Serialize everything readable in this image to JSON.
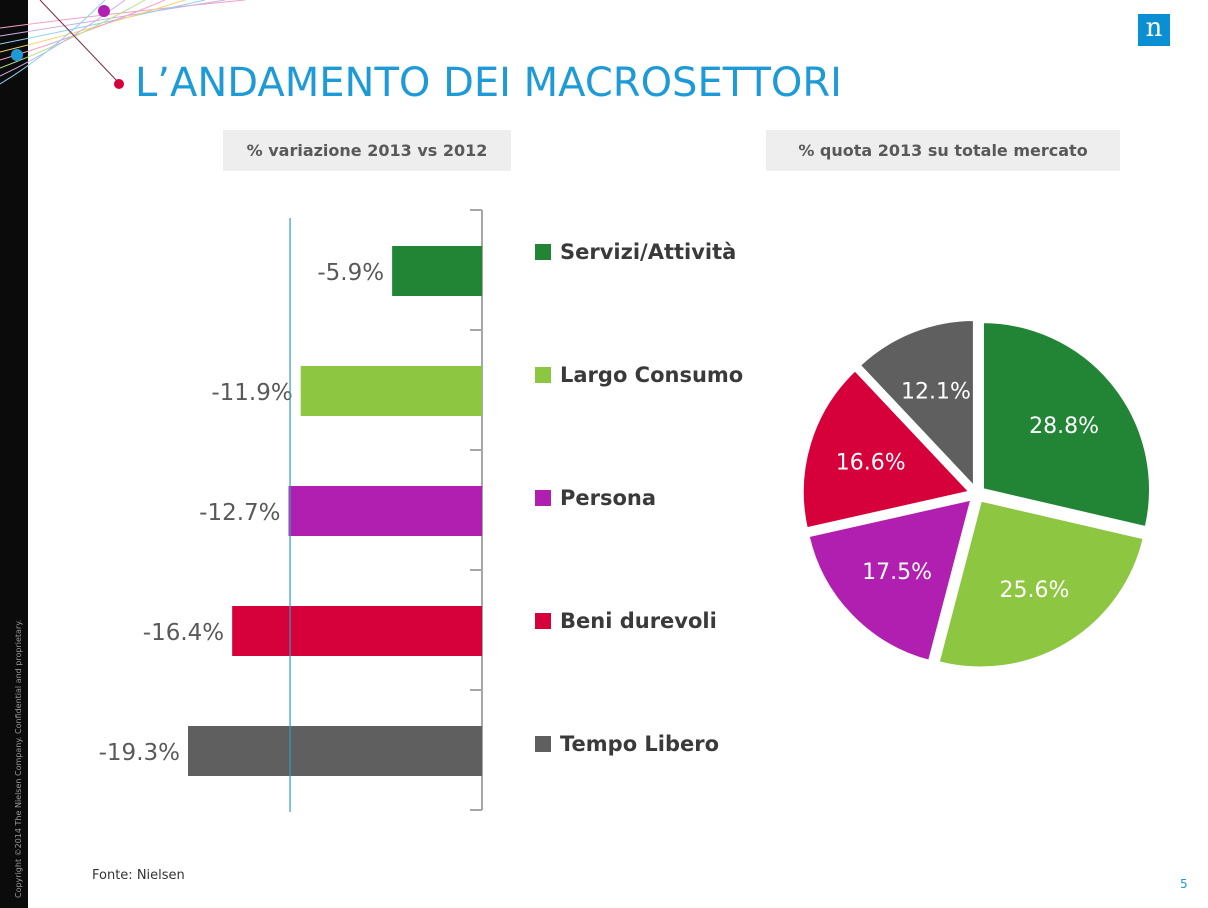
{
  "slide": {
    "title": "L’ANDAMENTO DEI MACROSETTORI",
    "copyright": "Copyright ©2014 The Nielsen Company. Confidential and proprietary.",
    "logo": "n",
    "source": "Fonte: Nielsen",
    "page_number": "5"
  },
  "legend": [
    {
      "label": "Servizi/Attività",
      "color": "#218535"
    },
    {
      "label": "Largo Consumo",
      "color": "#8dc641"
    },
    {
      "label": "Persona",
      "color": "#b01faf"
    },
    {
      "label": "Beni durevoli",
      "color": "#d6003a"
    },
    {
      "label": "Tempo Libero",
      "color": "#5f5f5f"
    }
  ],
  "chart_data": [
    {
      "type": "bar",
      "orientation": "horizontal",
      "title": "% variazione 2013 vs 2012",
      "categories": [
        "Servizi/Attività",
        "Largo Consumo",
        "Persona",
        "Beni durevoli",
        "Tempo Libero"
      ],
      "values": [
        -5.9,
        -11.9,
        -12.7,
        -16.4,
        -19.3
      ],
      "data_labels": [
        "-5.9%",
        "-11.9%",
        "-12.7%",
        "-16.4%",
        "-19.3%"
      ],
      "colors": [
        "#218535",
        "#8dc641",
        "#b01faf",
        "#d6003a",
        "#5f5f5f"
      ],
      "reference_value": -12.6,
      "xlim": [
        -19.3,
        0
      ],
      "grid": false
    },
    {
      "type": "pie",
      "title": "% quota 2013 su totale mercato",
      "categories": [
        "Servizi/Attività",
        "Largo Consumo",
        "Persona",
        "Beni durevoli",
        "Tempo Libero"
      ],
      "values": [
        28.8,
        25.6,
        17.5,
        16.6,
        12.1
      ],
      "data_labels": [
        "28.8%",
        "25.6%",
        "17.5%",
        "16.6%",
        "12.1%"
      ],
      "colors": [
        "#218535",
        "#8dc641",
        "#b01faf",
        "#d6003a",
        "#5f5f5f"
      ]
    }
  ]
}
